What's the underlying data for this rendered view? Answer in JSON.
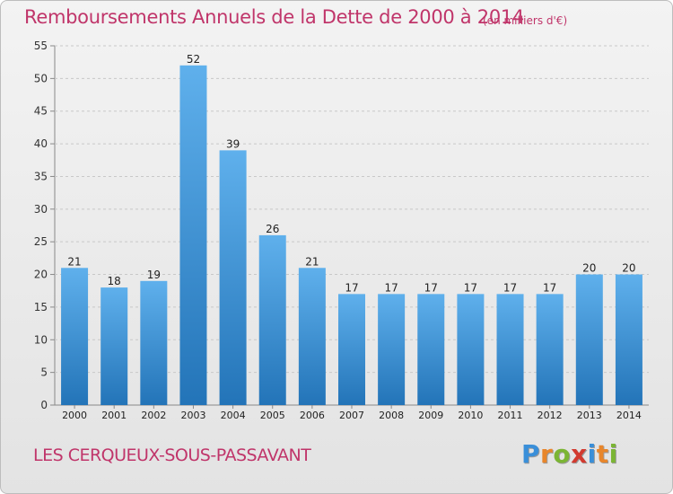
{
  "header": {
    "title": "Remboursements Annuels de la Dette de 2000 à 2014",
    "subtitle": "(en milliers d'€)"
  },
  "footer": {
    "commune": "LES CERQUEUX-SOUS-PASSAVANT",
    "brand_letters": [
      "P",
      "r",
      "o",
      "x",
      "i",
      "t",
      "i"
    ],
    "brand_colors": [
      "#3a8fd9",
      "#e8862b",
      "#7bb534",
      "#d23a2f",
      "#3a8fd9",
      "#e8862b",
      "#7bb534"
    ]
  },
  "colors": {
    "title": "#c0356a",
    "bar_top": "#5fb0ec",
    "bar_bottom": "#2374b8",
    "grid": "#c8c8c8"
  },
  "chart_data": {
    "type": "bar",
    "title": "Remboursements Annuels de la Dette de 2000 à 2014",
    "subtitle": "(en milliers d'€)",
    "categories": [
      "2000",
      "2001",
      "2002",
      "2003",
      "2004",
      "2005",
      "2006",
      "2007",
      "2008",
      "2009",
      "2010",
      "2011",
      "2012",
      "2013",
      "2014"
    ],
    "values": [
      21,
      18,
      19,
      52,
      39,
      26,
      21,
      17,
      17,
      17,
      17,
      17,
      17,
      20,
      20
    ],
    "value_labels": [
      "21",
      "18",
      "19",
      "52",
      "39",
      "26",
      "21",
      "17",
      "17",
      "17",
      "17",
      "17",
      "17",
      "20",
      "20"
    ],
    "yticks": [
      "0",
      "5",
      "10",
      "15",
      "20",
      "25",
      "30",
      "35",
      "40",
      "45",
      "50",
      "55"
    ],
    "ylim": [
      0,
      55
    ],
    "grid": true,
    "legend": false
  }
}
